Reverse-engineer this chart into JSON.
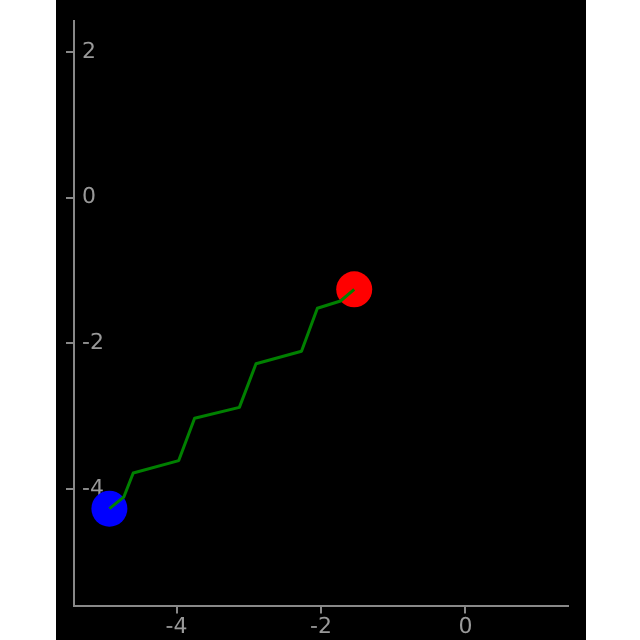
{
  "chart_data": {
    "type": "line",
    "xlim": [
      -5.42,
      1.42
    ],
    "ylim": [
      -5.6,
      2.42
    ],
    "xticks": [
      -4,
      -2,
      0
    ],
    "yticks": [
      -4,
      -2,
      0,
      2
    ],
    "grid": false,
    "legend": false,
    "series": [
      {
        "color": "#008000",
        "marker": "none",
        "x": [
          -4.93,
          -4.73,
          -4.6,
          -3.97,
          -3.75,
          -3.13,
          -2.9,
          -2.27,
          -2.05,
          -1.73,
          -1.54
        ],
        "values": [
          -4.27,
          -4.11,
          -3.78,
          -3.61,
          -3.03,
          -2.88,
          -2.28,
          -2.11,
          -1.52,
          -1.42,
          -1.26
        ]
      },
      {
        "type": "scatter",
        "color": "#0000ff",
        "marker": "circle",
        "x": [
          -4.93
        ],
        "values": [
          -4.27
        ]
      },
      {
        "type": "scatter",
        "color": "#ff0000",
        "marker": "circle",
        "x": [
          -1.54
        ],
        "values": [
          -1.26
        ]
      }
    ]
  }
}
